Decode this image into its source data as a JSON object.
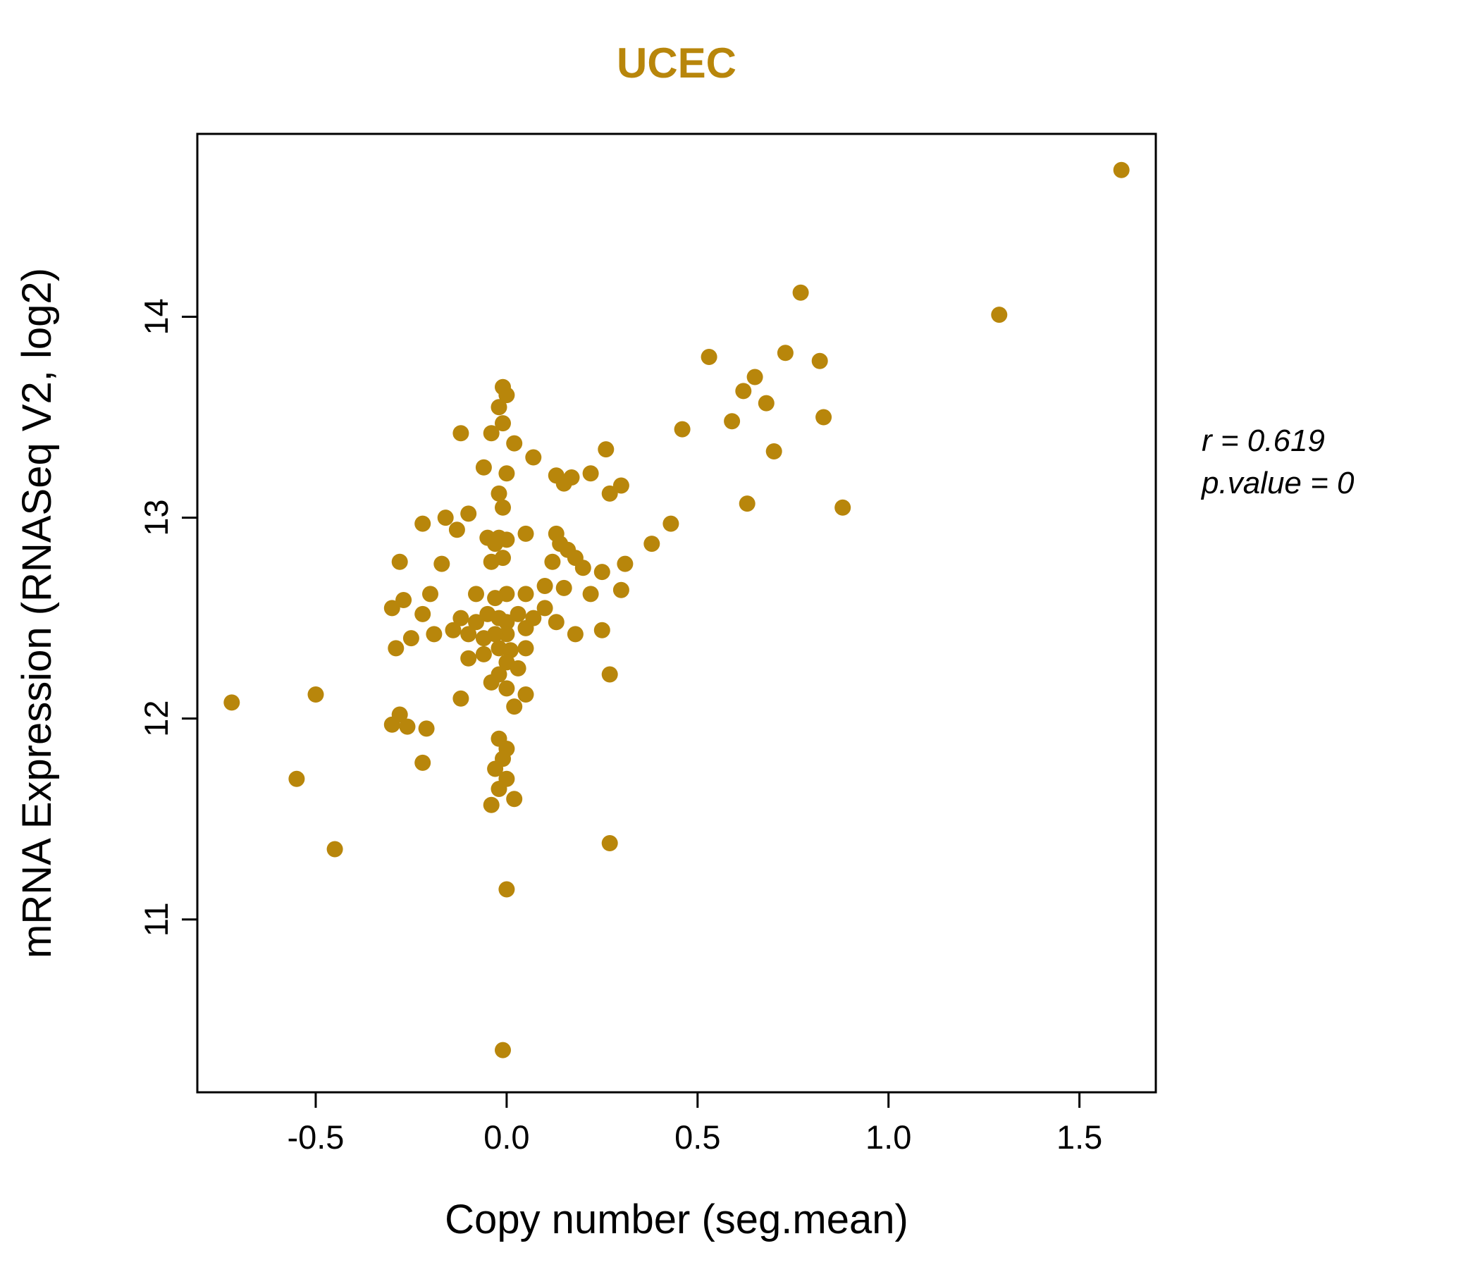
{
  "chart_data": {
    "type": "scatter",
    "title": "UCEC",
    "title_color": "#B8860B",
    "xlabel": "Copy number (seg.mean)",
    "ylabel": "mRNA Expression (RNASeq V2, log2)",
    "xlim": [
      -0.81,
      1.7
    ],
    "ylim": [
      10.14,
      14.91
    ],
    "xticks": [
      {
        "value": -0.5,
        "label": "-0.5"
      },
      {
        "value": 0.0,
        "label": "0.0"
      },
      {
        "value": 0.5,
        "label": "0.5"
      },
      {
        "value": 1.0,
        "label": "1.0"
      },
      {
        "value": 1.5,
        "label": "1.5"
      }
    ],
    "yticks": [
      {
        "value": 11,
        "label": "11"
      },
      {
        "value": 12,
        "label": "12"
      },
      {
        "value": 13,
        "label": "13"
      },
      {
        "value": 14,
        "label": "14"
      }
    ],
    "point_color": "#B8860B",
    "grid": false,
    "legend": "none",
    "annotation": {
      "r_line": "r = 0.619",
      "p_line": "p.value = 0"
    },
    "points": [
      [
        1.61,
        14.73
      ],
      [
        1.29,
        14.01
      ],
      [
        0.77,
        14.12
      ],
      [
        0.53,
        13.8
      ],
      [
        0.73,
        13.82
      ],
      [
        0.82,
        13.78
      ],
      [
        0.65,
        13.7
      ],
      [
        0.62,
        13.63
      ],
      [
        0.68,
        13.57
      ],
      [
        0.83,
        13.5
      ],
      [
        0.59,
        13.48
      ],
      [
        0.7,
        13.33
      ],
      [
        0.46,
        13.44
      ],
      [
        0.26,
        13.34
      ],
      [
        0.3,
        13.16
      ],
      [
        0.27,
        13.12
      ],
      [
        0.63,
        13.07
      ],
      [
        0.88,
        13.05
      ],
      [
        -0.01,
        13.65
      ],
      [
        0.0,
        13.61
      ],
      [
        -0.02,
        13.55
      ],
      [
        -0.01,
        13.47
      ],
      [
        -0.04,
        13.42
      ],
      [
        -0.12,
        13.42
      ],
      [
        0.02,
        13.37
      ],
      [
        0.07,
        13.3
      ],
      [
        -0.06,
        13.25
      ],
      [
        0.0,
        13.22
      ],
      [
        0.13,
        13.21
      ],
      [
        0.17,
        13.2
      ],
      [
        0.22,
        13.22
      ],
      [
        0.15,
        13.17
      ],
      [
        -0.02,
        13.12
      ],
      [
        -0.01,
        13.05
      ],
      [
        -0.1,
        13.02
      ],
      [
        -0.16,
        13.0
      ],
      [
        -0.22,
        12.97
      ],
      [
        -0.13,
        12.94
      ],
      [
        0.43,
        12.97
      ],
      [
        0.38,
        12.87
      ],
      [
        0.31,
        12.77
      ],
      [
        0.25,
        12.73
      ],
      [
        0.2,
        12.75
      ],
      [
        0.05,
        12.92
      ],
      [
        0.13,
        12.92
      ],
      [
        0.14,
        12.87
      ],
      [
        -0.05,
        12.9
      ],
      [
        -0.02,
        12.9
      ],
      [
        0.0,
        12.89
      ],
      [
        -0.03,
        12.87
      ],
      [
        0.16,
        12.84
      ],
      [
        0.18,
        12.8
      ],
      [
        0.12,
        12.78
      ],
      [
        -0.01,
        12.8
      ],
      [
        -0.04,
        12.78
      ],
      [
        -0.17,
        12.77
      ],
      [
        -0.28,
        12.78
      ],
      [
        0.3,
        12.64
      ],
      [
        0.22,
        12.62
      ],
      [
        0.15,
        12.65
      ],
      [
        0.1,
        12.66
      ],
      [
        0.05,
        12.62
      ],
      [
        0.0,
        12.62
      ],
      [
        -0.03,
        12.6
      ],
      [
        -0.08,
        12.62
      ],
      [
        -0.2,
        12.62
      ],
      [
        -0.27,
        12.59
      ],
      [
        -0.3,
        12.55
      ],
      [
        -0.22,
        12.52
      ],
      [
        -0.12,
        12.5
      ],
      [
        -0.08,
        12.48
      ],
      [
        -0.05,
        12.52
      ],
      [
        -0.02,
        12.5
      ],
      [
        0.0,
        12.48
      ],
      [
        0.03,
        12.52
      ],
      [
        0.07,
        12.5
      ],
      [
        0.1,
        12.55
      ],
      [
        0.13,
        12.48
      ],
      [
        0.05,
        12.45
      ],
      [
        0.0,
        12.42
      ],
      [
        -0.03,
        12.42
      ],
      [
        -0.06,
        12.4
      ],
      [
        -0.1,
        12.42
      ],
      [
        -0.14,
        12.44
      ],
      [
        -0.19,
        12.42
      ],
      [
        -0.25,
        12.4
      ],
      [
        -0.29,
        12.35
      ],
      [
        0.18,
        12.42
      ],
      [
        0.25,
        12.44
      ],
      [
        -0.02,
        12.35
      ],
      [
        0.01,
        12.34
      ],
      [
        0.05,
        12.35
      ],
      [
        -0.06,
        12.32
      ],
      [
        -0.1,
        12.3
      ],
      [
        0.0,
        12.28
      ],
      [
        0.03,
        12.25
      ],
      [
        -0.02,
        12.22
      ],
      [
        -0.04,
        12.18
      ],
      [
        0.0,
        12.15
      ],
      [
        0.05,
        12.12
      ],
      [
        0.27,
        12.22
      ],
      [
        -0.12,
        12.1
      ],
      [
        0.02,
        12.06
      ],
      [
        -0.72,
        12.08
      ],
      [
        -0.5,
        12.12
      ],
      [
        -0.55,
        11.7
      ],
      [
        -0.45,
        11.35
      ],
      [
        -0.28,
        12.02
      ],
      [
        -0.3,
        11.97
      ],
      [
        -0.26,
        11.96
      ],
      [
        -0.21,
        11.95
      ],
      [
        -0.22,
        11.78
      ],
      [
        -0.02,
        11.9
      ],
      [
        0.0,
        11.85
      ],
      [
        -0.01,
        11.8
      ],
      [
        -0.03,
        11.75
      ],
      [
        0.0,
        11.7
      ],
      [
        -0.02,
        11.65
      ],
      [
        -0.04,
        11.57
      ],
      [
        0.02,
        11.6
      ],
      [
        0.27,
        11.38
      ],
      [
        0.0,
        11.15
      ],
      [
        -0.01,
        10.35
      ]
    ]
  }
}
